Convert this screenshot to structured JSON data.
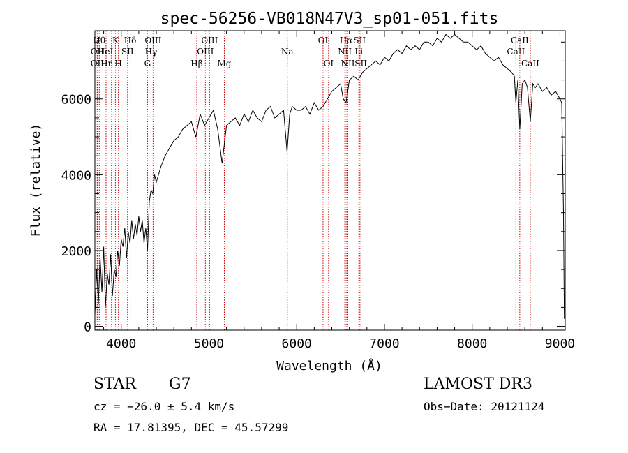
{
  "chart_data": {
    "type": "line",
    "title": "spec-56256-VB018N47V3_sp01-051.fits",
    "xlabel": "Wavelength (Å)",
    "ylabel": "Flux (relative)",
    "xlim": [
      3700,
      9060
    ],
    "ylim": [
      -100,
      7800
    ],
    "x_ticks": [
      4000,
      5000,
      6000,
      7000,
      8000,
      9000
    ],
    "x_tick_labels": [
      "4000",
      "5000",
      "6000",
      "7000",
      "8000",
      "9000"
    ],
    "y_ticks": [
      0,
      2000,
      4000,
      6000
    ],
    "y_tick_labels": [
      "0",
      "2000",
      "4000",
      "6000"
    ],
    "grid": false,
    "line_color": "#000000",
    "marker_color": "#cc0000",
    "series": [
      {
        "x": [
          3700,
          3720,
          3740,
          3760,
          3780,
          3800,
          3820,
          3840,
          3860,
          3880,
          3900,
          3920,
          3940,
          3960,
          3980,
          4000,
          4020,
          4040,
          4060,
          4080,
          4100,
          4120,
          4140,
          4160,
          4180,
          4200,
          4220,
          4240,
          4260,
          4280,
          4300,
          4320,
          4340,
          4360,
          4380,
          4400,
          4450,
          4500,
          4550,
          4600,
          4650,
          4700,
          4750,
          4800,
          4850,
          4900,
          4950,
          5000,
          5050,
          5100,
          5150,
          5200,
          5250,
          5300,
          5350,
          5400,
          5450,
          5500,
          5550,
          5600,
          5650,
          5700,
          5750,
          5800,
          5850,
          5890,
          5920,
          5950,
          6000,
          6050,
          6100,
          6150,
          6200,
          6250,
          6300,
          6350,
          6400,
          6450,
          6500,
          6530,
          6563,
          6600,
          6650,
          6700,
          6750,
          6800,
          6850,
          6900,
          6950,
          7000,
          7050,
          7100,
          7150,
          7200,
          7250,
          7300,
          7350,
          7400,
          7450,
          7500,
          7550,
          7600,
          7650,
          7700,
          7750,
          7800,
          7850,
          7900,
          7950,
          8000,
          8050,
          8100,
          8150,
          8200,
          8250,
          8300,
          8350,
          8400,
          8450,
          8480,
          8498,
          8520,
          8542,
          8570,
          8600,
          8630,
          8662,
          8690,
          8720,
          8750,
          8800,
          8850,
          8900,
          8950,
          9000,
          9020,
          9040,
          9050
        ],
        "y": [
          300,
          1500,
          600,
          1800,
          900,
          2100,
          500,
          1400,
          1100,
          1900,
          800,
          1500,
          1300,
          2000,
          1600,
          2300,
          2100,
          2600,
          1800,
          2500,
          2200,
          2800,
          2300,
          2700,
          2400,
          2900,
          2500,
          2800,
          2200,
          2600,
          2000,
          3300,
          3600,
          3500,
          4000,
          3800,
          4200,
          4500,
          4700,
          4900,
          5000,
          5200,
          5300,
          5400,
          5000,
          5600,
          5300,
          5500,
          5700,
          5200,
          4300,
          5300,
          5400,
          5500,
          5300,
          5600,
          5400,
          5700,
          5500,
          5400,
          5700,
          5800,
          5500,
          5600,
          5700,
          4600,
          5600,
          5800,
          5700,
          5700,
          5800,
          5600,
          5900,
          5700,
          5800,
          6000,
          6200,
          6300,
          6400,
          6000,
          5900,
          6500,
          6600,
          6500,
          6700,
          6800,
          6900,
          7000,
          6900,
          7100,
          7000,
          7200,
          7300,
          7200,
          7400,
          7300,
          7400,
          7300,
          7500,
          7500,
          7400,
          7600,
          7500,
          7700,
          7600,
          7700,
          7600,
          7500,
          7500,
          7400,
          7300,
          7400,
          7200,
          7100,
          7000,
          7100,
          6900,
          6800,
          6700,
          6600,
          5900,
          6500,
          5200,
          6400,
          6500,
          6300,
          5400,
          6400,
          6300,
          6400,
          6200,
          6300,
          6100,
          6200,
          6000,
          5900,
          3000,
          200
        ]
      }
    ],
    "line_markers": [
      {
        "wl": 3750,
        "row": 1,
        "label": "Hθ"
      },
      {
        "wl": 3727,
        "row": 2,
        "label": "OII"
      },
      {
        "wl": 3727,
        "row": 3,
        "label": "OII"
      },
      {
        "wl": 3835,
        "row": 3,
        "label": "Hη"
      },
      {
        "wl": 3820,
        "row": 2,
        "label": "HeI"
      },
      {
        "wl": 3889,
        "row": 2,
        "label": ""
      },
      {
        "wl": 3934,
        "row": 1,
        "label": "K"
      },
      {
        "wl": 3968,
        "row": 3,
        "label": "H"
      },
      {
        "wl": 4072,
        "row": 2,
        "label": "SII"
      },
      {
        "wl": 4102,
        "row": 1,
        "label": "Hδ"
      },
      {
        "wl": 4300,
        "row": 3,
        "label": "G"
      },
      {
        "wl": 4340,
        "row": 2,
        "label": "Hγ"
      },
      {
        "wl": 4363,
        "row": 1,
        "label": "OIII"
      },
      {
        "wl": 4861,
        "row": 3,
        "label": "Hβ"
      },
      {
        "wl": 4959,
        "row": 2,
        "label": "OIII"
      },
      {
        "wl": 5007,
        "row": 1,
        "label": "OIII"
      },
      {
        "wl": 5175,
        "row": 3,
        "label": "Mg"
      },
      {
        "wl": 5893,
        "row": 2,
        "label": "Na"
      },
      {
        "wl": 6300,
        "row": 1,
        "label": "OI"
      },
      {
        "wl": 6363,
        "row": 3,
        "label": "OI"
      },
      {
        "wl": 6548,
        "row": 2,
        "label": "NII"
      },
      {
        "wl": 6563,
        "row": 1,
        "label": "Hα"
      },
      {
        "wl": 6583,
        "row": 3,
        "label": "NII"
      },
      {
        "wl": 6708,
        "row": 2,
        "label": "Li"
      },
      {
        "wl": 6716,
        "row": 1,
        "label": "SII"
      },
      {
        "wl": 6731,
        "row": 3,
        "label": "SII"
      },
      {
        "wl": 8498,
        "row": 2,
        "label": "CaII"
      },
      {
        "wl": 8542,
        "row": 1,
        "label": "CaII"
      },
      {
        "wl": 8662,
        "row": 3,
        "label": "CaII"
      }
    ]
  },
  "info": {
    "object_class": "STAR",
    "subclass": "G7",
    "survey": "LAMOST DR3",
    "redshift_line": "cz = −26.0 ± 5.4 km/s",
    "obs_date_line": "Obs−Date: 20121124",
    "coords_line": "RA =  17.81395, DEC =  45.57299"
  }
}
